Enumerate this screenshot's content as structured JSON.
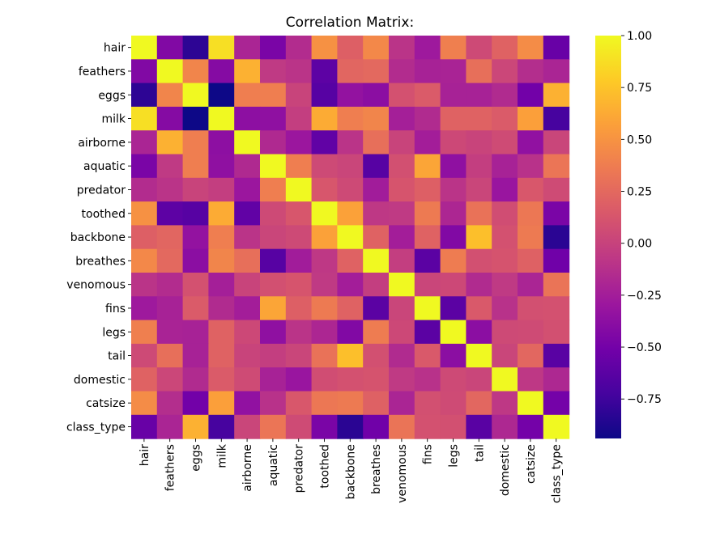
{
  "chart_data": {
    "type": "heatmap",
    "title": "Correlation Matrix:",
    "xlabel": "",
    "ylabel": "",
    "rows": [
      "hair",
      "feathers",
      "eggs",
      "milk",
      "airborne",
      "aquatic",
      "predator",
      "toothed",
      "backbone",
      "breathes",
      "venomous",
      "fins",
      "legs",
      "tail",
      "domestic",
      "catsize",
      "class_type"
    ],
    "columns": [
      "hair",
      "feathers",
      "eggs",
      "milk",
      "airborne",
      "aquatic",
      "predator",
      "toothed",
      "backbone",
      "breathes",
      "venomous",
      "fins",
      "legs",
      "tail",
      "domestic",
      "catsize",
      "class_type"
    ],
    "values": [
      [
        1.0,
        -0.43,
        -0.82,
        0.88,
        -0.2,
        -0.47,
        -0.15,
        0.49,
        0.19,
        0.44,
        -0.1,
        -0.28,
        0.39,
        0.05,
        0.21,
        0.46,
        -0.56
      ],
      [
        -0.43,
        1.0,
        0.42,
        -0.41,
        0.66,
        -0.06,
        -0.1,
        -0.61,
        0.23,
        0.25,
        -0.15,
        -0.22,
        -0.21,
        0.29,
        0.03,
        -0.14,
        -0.2
      ],
      [
        -0.82,
        0.42,
        1.0,
        -0.94,
        0.38,
        0.38,
        0.01,
        -0.64,
        -0.34,
        -0.38,
        0.1,
        0.16,
        -0.22,
        -0.22,
        -0.16,
        -0.51,
        0.66
      ],
      [
        0.88,
        -0.41,
        -0.94,
        1.0,
        -0.37,
        -0.36,
        -0.03,
        0.63,
        0.38,
        0.42,
        -0.24,
        -0.16,
        0.21,
        0.21,
        0.16,
        0.57,
        -0.72
      ],
      [
        -0.2,
        0.66,
        0.38,
        -0.37,
        1.0,
        -0.17,
        -0.3,
        -0.59,
        -0.1,
        0.29,
        0.01,
        -0.25,
        0.04,
        0.01,
        0.06,
        -0.35,
        0.02
      ],
      [
        -0.47,
        -0.06,
        0.38,
        -0.36,
        -0.17,
        1.0,
        0.38,
        0.05,
        0.02,
        -0.64,
        0.09,
        0.6,
        -0.36,
        -0.03,
        -0.22,
        -0.11,
        0.33
      ],
      [
        -0.15,
        -0.1,
        0.01,
        -0.03,
        -0.3,
        0.38,
        1.0,
        0.13,
        0.05,
        -0.26,
        0.12,
        0.19,
        -0.1,
        0.02,
        -0.31,
        0.14,
        0.06
      ],
      [
        0.49,
        -0.61,
        -0.64,
        0.63,
        -0.59,
        0.05,
        0.13,
        1.0,
        0.58,
        -0.07,
        -0.06,
        0.36,
        -0.19,
        0.31,
        0.07,
        0.34,
        -0.47
      ],
      [
        0.19,
        0.23,
        -0.34,
        0.38,
        -0.1,
        0.02,
        0.05,
        0.58,
        1.0,
        0.21,
        -0.25,
        0.21,
        -0.43,
        0.73,
        0.1,
        0.36,
        -0.83
      ],
      [
        0.44,
        0.25,
        -0.38,
        0.42,
        0.29,
        -0.64,
        -0.26,
        -0.07,
        0.21,
        1.0,
        -0.03,
        -0.62,
        0.37,
        0.09,
        0.11,
        0.2,
        -0.52
      ],
      [
        -0.1,
        -0.15,
        0.1,
        -0.24,
        0.01,
        0.09,
        0.12,
        -0.06,
        -0.25,
        -0.03,
        1.0,
        0.02,
        0.04,
        -0.16,
        -0.06,
        -0.2,
        0.32
      ],
      [
        -0.28,
        -0.22,
        0.16,
        -0.16,
        -0.25,
        0.6,
        0.19,
        0.36,
        0.21,
        -0.62,
        0.02,
        1.0,
        -0.62,
        0.15,
        -0.11,
        0.09,
        0.1
      ],
      [
        0.39,
        -0.21,
        -0.22,
        0.21,
        0.04,
        -0.36,
        -0.1,
        -0.19,
        -0.43,
        0.37,
        0.04,
        -0.62,
        1.0,
        -0.38,
        0.05,
        0.06,
        0.09
      ],
      [
        0.05,
        0.29,
        -0.22,
        0.21,
        0.01,
        -0.03,
        0.02,
        0.31,
        0.73,
        0.09,
        -0.16,
        0.15,
        -0.38,
        1.0,
        0.02,
        0.24,
        -0.63
      ],
      [
        0.21,
        0.03,
        -0.16,
        0.16,
        0.06,
        -0.22,
        -0.31,
        0.07,
        0.1,
        0.11,
        -0.06,
        -0.11,
        0.05,
        0.02,
        1.0,
        -0.07,
        -0.18
      ],
      [
        0.46,
        -0.14,
        -0.51,
        0.57,
        -0.35,
        -0.11,
        0.14,
        0.34,
        0.36,
        0.2,
        -0.2,
        0.09,
        0.06,
        0.24,
        -0.07,
        1.0,
        -0.5
      ],
      [
        -0.56,
        -0.2,
        0.66,
        -0.72,
        0.02,
        0.33,
        0.06,
        -0.47,
        -0.83,
        -0.52,
        0.32,
        0.1,
        0.09,
        -0.63,
        -0.18,
        -0.5,
        1.0
      ]
    ],
    "colormap": "plasma",
    "colorbar": {
      "vmin": -0.94,
      "vmax": 1.0,
      "ticks": [
        1.0,
        0.75,
        0.5,
        0.25,
        0.0,
        -0.25,
        -0.5,
        -0.75
      ],
      "tick_labels": [
        "1.00",
        "0.75",
        "0.50",
        "0.25",
        "0.00",
        "−0.25",
        "−0.50",
        "−0.75"
      ]
    },
    "plasma_stops": [
      "#0d0887",
      "#46039f",
      "#7201a8",
      "#9c179e",
      "#bd3786",
      "#d8576b",
      "#ed7953",
      "#fb9f3a",
      "#fdca26",
      "#f0f921"
    ]
  }
}
